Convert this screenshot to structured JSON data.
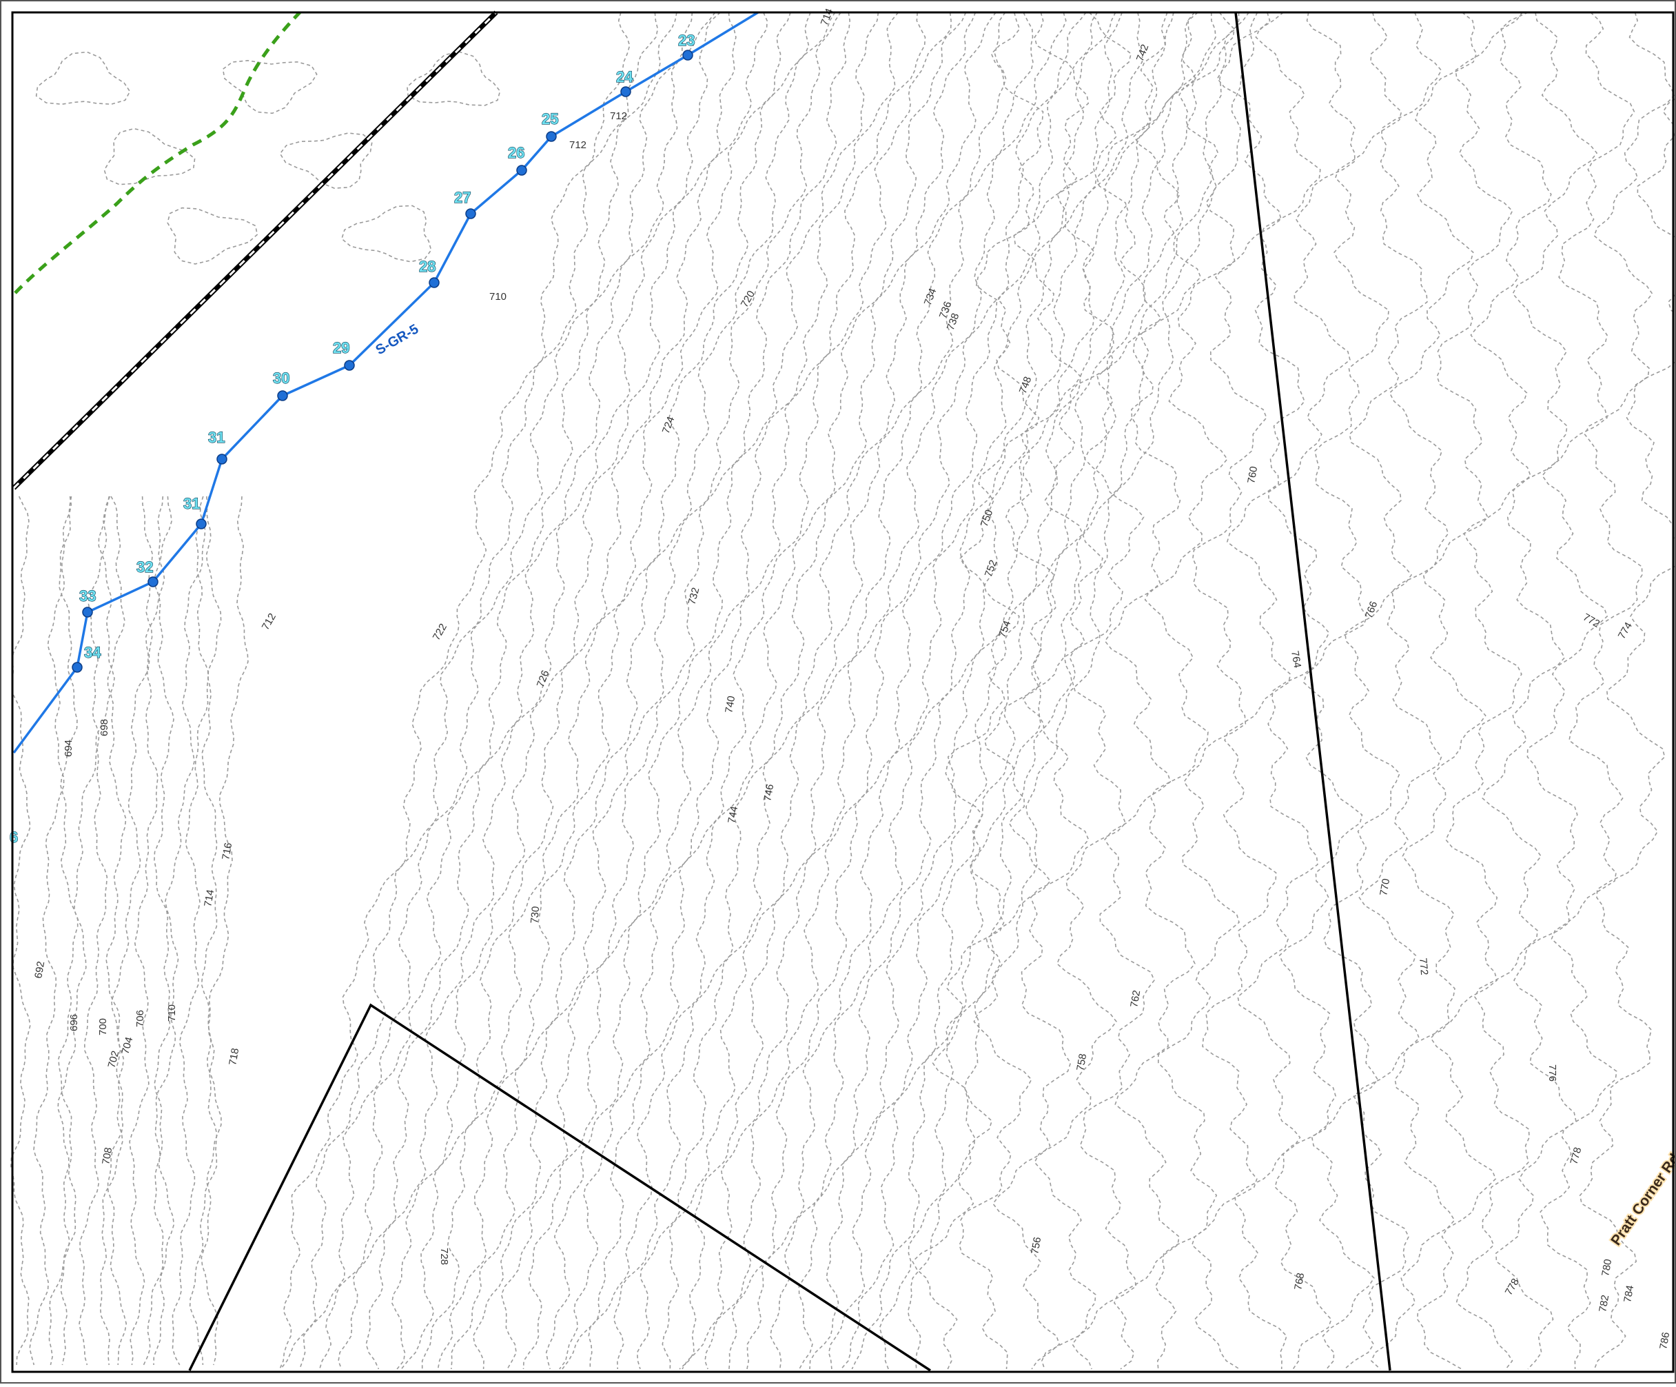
{
  "map": {
    "colors": {
      "stream": "#1f78e6",
      "vertex": "#1f6fd6",
      "vertex_label": "#6fe0f0",
      "trail": "#3aa01a",
      "rail_dash": "#000000",
      "parcel_line": "#000000",
      "contour": "#9a9a9a",
      "road_label_halo": "#ffe3b0"
    },
    "stream": {
      "name": "S-GR-5",
      "vertex_labels": [
        "23",
        "24",
        "25",
        "26",
        "27",
        "28",
        "29",
        "30",
        "31",
        "31",
        "32",
        "33",
        "34"
      ]
    },
    "road_label": "Pratt Corner Rd",
    "edge_fragment": "6",
    "contour_labels": [
      "714",
      "742",
      "712",
      "712",
      "720",
      "710",
      "734",
      "736",
      "738",
      "748",
      "724",
      "760",
      "750",
      "752",
      "732",
      "766",
      "772",
      "774",
      "712",
      "722",
      "754",
      "764",
      "726",
      "740",
      "694",
      "698",
      "746",
      "744",
      "716",
      "714",
      "730",
      "770",
      "772",
      "692",
      "762",
      "696",
      "700",
      "706",
      "710",
      "702",
      "704",
      "718",
      "758",
      "776",
      "708",
      "778",
      "728",
      "756",
      "768",
      "780",
      "778",
      "782",
      "784",
      "786"
    ]
  }
}
